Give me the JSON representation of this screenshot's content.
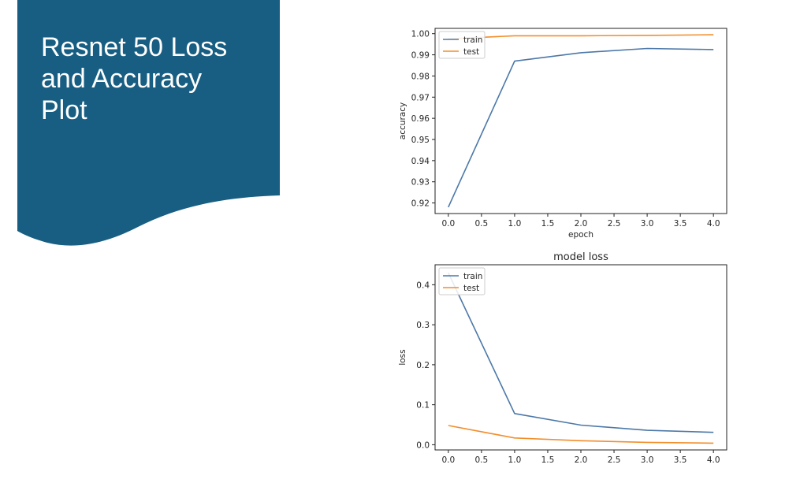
{
  "slide": {
    "title_lines": [
      "Resnet 50 Loss",
      "and Accuracy",
      "Plot"
    ],
    "banner_color": "#175e82"
  },
  "chart_data": [
    {
      "type": "line",
      "title": "",
      "xlabel": "epoch",
      "ylabel": "accuracy",
      "x": [
        0,
        1,
        2,
        3,
        4
      ],
      "series": [
        {
          "name": "train",
          "color": "#4c78a8",
          "values": [
            0.918,
            0.987,
            0.991,
            0.993,
            0.9925
          ]
        },
        {
          "name": "test",
          "color": "#f28e2b",
          "values": [
            0.9975,
            0.999,
            0.999,
            0.9992,
            0.9995
          ]
        }
      ],
      "xlim": [
        -0.2,
        4.2
      ],
      "ylim": [
        0.915,
        1.0025
      ],
      "xticks": [
        "0.0",
        "0.5",
        "1.0",
        "1.5",
        "2.0",
        "2.5",
        "3.0",
        "3.5",
        "4.0"
      ],
      "yticks": [
        "0.92",
        "0.93",
        "0.94",
        "0.95",
        "0.96",
        "0.97",
        "0.98",
        "0.99",
        "1.00"
      ],
      "legend": "upper-left",
      "grid": false
    },
    {
      "type": "line",
      "title": "model loss",
      "xlabel": "",
      "ylabel": "loss",
      "x": [
        0,
        1,
        2,
        3,
        4
      ],
      "series": [
        {
          "name": "train",
          "color": "#4c78a8",
          "values": [
            0.43,
            0.078,
            0.049,
            0.036,
            0.031
          ]
        },
        {
          "name": "test",
          "color": "#f28e2b",
          "values": [
            0.048,
            0.017,
            0.01,
            0.006,
            0.004
          ]
        }
      ],
      "xlim": [
        -0.2,
        4.2
      ],
      "ylim": [
        -0.013,
        0.45
      ],
      "xticks": [
        "0.0",
        "0.5",
        "1.0",
        "1.5",
        "2.0",
        "2.5",
        "3.0",
        "3.5",
        "4.0"
      ],
      "yticks": [
        "0.0",
        "0.1",
        "0.2",
        "0.3",
        "0.4"
      ],
      "legend": "upper-left",
      "grid": false
    }
  ]
}
